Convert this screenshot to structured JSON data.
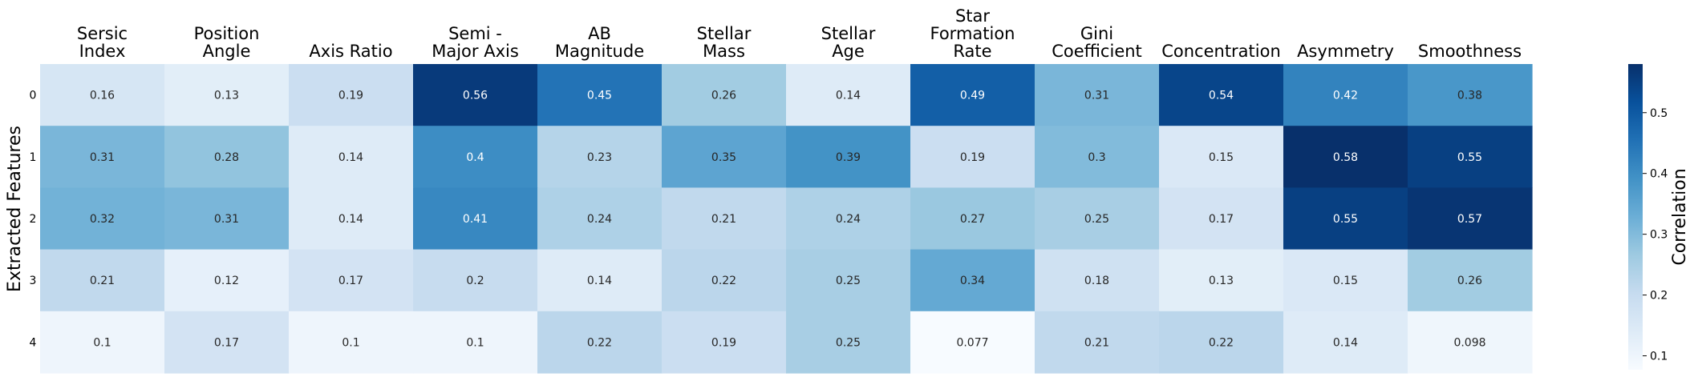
{
  "chart_data": {
    "type": "heatmap",
    "colormap": "Blues",
    "columns": [
      [
        "Sersic",
        "Index"
      ],
      [
        "Position",
        "Angle"
      ],
      [
        "Axis Ratio"
      ],
      [
        "Semi -",
        "Major Axis"
      ],
      [
        "AB",
        "Magnitude"
      ],
      [
        "Stellar",
        "Mass"
      ],
      [
        "Stellar",
        "Age"
      ],
      [
        "Star",
        "Formation",
        "Rate"
      ],
      [
        "Gini",
        "Coefficient"
      ],
      [
        "Concentration"
      ],
      [
        "Asymmetry"
      ],
      [
        "Smoothness"
      ]
    ],
    "rows": [
      "0",
      "1",
      "2",
      "3",
      "4"
    ],
    "values": [
      [
        0.16,
        0.13,
        0.19,
        0.56,
        0.45,
        0.26,
        0.14,
        0.49,
        0.31,
        0.54,
        0.42,
        0.38
      ],
      [
        0.31,
        0.28,
        0.14,
        0.4,
        0.23,
        0.35,
        0.39,
        0.19,
        0.3,
        0.15,
        0.58,
        0.55
      ],
      [
        0.32,
        0.31,
        0.14,
        0.41,
        0.24,
        0.21,
        0.24,
        0.27,
        0.25,
        0.17,
        0.55,
        0.57
      ],
      [
        0.21,
        0.12,
        0.17,
        0.2,
        0.14,
        0.22,
        0.25,
        0.34,
        0.18,
        0.13,
        0.15,
        0.26
      ],
      [
        0.1,
        0.17,
        0.1,
        0.1,
        0.22,
        0.19,
        0.25,
        0.077,
        0.21,
        0.22,
        0.14,
        0.098
      ]
    ],
    "value_labels": [
      [
        "0.16",
        "0.13",
        "0.19",
        "0.56",
        "0.45",
        "0.26",
        "0.14",
        "0.49",
        "0.31",
        "0.54",
        "0.42",
        "0.38"
      ],
      [
        "0.31",
        "0.28",
        "0.14",
        "0.4",
        "0.23",
        "0.35",
        "0.39",
        "0.19",
        "0.3",
        "0.15",
        "0.58",
        "0.55"
      ],
      [
        "0.32",
        "0.31",
        "0.14",
        "0.41",
        "0.24",
        "0.21",
        "0.24",
        "0.27",
        "0.25",
        "0.17",
        "0.55",
        "0.57"
      ],
      [
        "0.21",
        "0.12",
        "0.17",
        "0.2",
        "0.14",
        "0.22",
        "0.25",
        "0.34",
        "0.18",
        "0.13",
        "0.15",
        "0.26"
      ],
      [
        "0.1",
        "0.17",
        "0.1",
        "0.1",
        "0.22",
        "0.19",
        "0.25",
        "0.077",
        "0.21",
        "0.22",
        "0.14",
        "0.098"
      ]
    ],
    "ylabel": "Extracted Features",
    "colorbar": {
      "label": "Correlation",
      "range": [
        0.077,
        0.58
      ],
      "ticks": [
        0.1,
        0.2,
        0.3,
        0.4,
        0.5
      ],
      "tick_labels": [
        "0.1",
        "0.2",
        "0.3",
        "0.4",
        "0.5"
      ]
    }
  }
}
